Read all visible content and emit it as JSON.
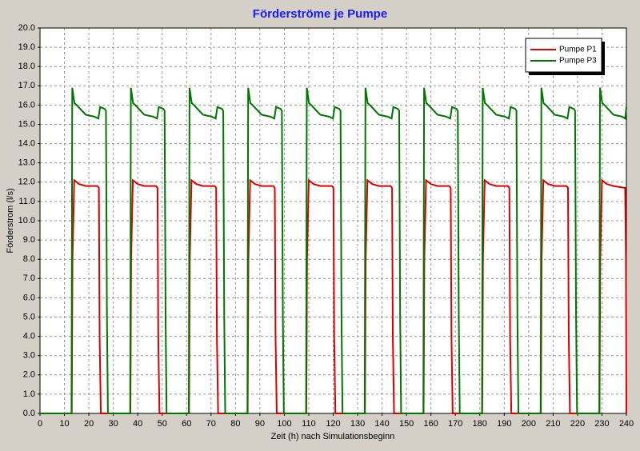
{
  "chart_data": {
    "type": "line",
    "title": "Förderströme je Pumpe",
    "xlabel": "Zeit (h) nach Simulationsbeginn",
    "ylabel": "Förderstrom (l/s)",
    "xlim": [
      0,
      240
    ],
    "ylim": [
      0,
      20
    ],
    "xticks": [
      0,
      10,
      20,
      30,
      40,
      50,
      60,
      70,
      80,
      90,
      100,
      110,
      120,
      130,
      140,
      150,
      160,
      170,
      180,
      190,
      200,
      210,
      220,
      230,
      240
    ],
    "yticks": [
      {
        "value": 0,
        "label": "0.0"
      },
      {
        "value": 1,
        "label": "1.0"
      },
      {
        "value": 2,
        "label": "2.0"
      },
      {
        "value": 3,
        "label": "3.0"
      },
      {
        "value": 4,
        "label": "4.0"
      },
      {
        "value": 5,
        "label": "5.0"
      },
      {
        "value": 6,
        "label": "6.0"
      },
      {
        "value": 7,
        "label": "7.0"
      },
      {
        "value": 8,
        "label": "8.0"
      },
      {
        "value": 9,
        "label": "9.0"
      },
      {
        "value": 10,
        "label": "10.0"
      },
      {
        "value": 11,
        "label": "11.0"
      },
      {
        "value": 12,
        "label": "12.0"
      },
      {
        "value": 13,
        "label": "13.0"
      },
      {
        "value": 14,
        "label": "14.0"
      },
      {
        "value": 15,
        "label": "15.0"
      },
      {
        "value": 16,
        "label": "16.0"
      },
      {
        "value": 17,
        "label": "17.0"
      },
      {
        "value": 18,
        "label": "18.0"
      },
      {
        "value": 19,
        "label": "19.0"
      },
      {
        "value": 20,
        "label": "20.0"
      }
    ],
    "grid": true,
    "legend": "upper right",
    "series": [
      {
        "name": "Pumpe P1",
        "color": "#dd0000",
        "x": [
          0,
          13.0,
          13.3,
          14.0,
          16,
          18.7,
          23.5,
          24.1,
          24.4,
          24.9,
          37.0,
          37.3,
          38.0,
          40,
          42.7,
          47.5,
          48.1,
          48.4,
          48.9,
          61.0,
          61.3,
          62.0,
          64,
          66.7,
          71.5,
          72.1,
          72.4,
          72.9,
          85.0,
          85.3,
          86.0,
          88,
          90.7,
          95.5,
          96.1,
          96.4,
          96.9,
          109.0,
          109.3,
          110.0,
          112,
          114.7,
          119.5,
          120.1,
          120.4,
          120.9,
          133.0,
          133.3,
          134.0,
          136,
          138.7,
          143.5,
          144.1,
          144.4,
          144.9,
          157.0,
          157.3,
          158.0,
          160,
          162.7,
          167.5,
          168.1,
          168.4,
          168.9,
          181.0,
          181.3,
          182.0,
          184,
          186.7,
          191.5,
          192.1,
          192.4,
          192.9,
          205.0,
          205.3,
          206.0,
          208,
          210.7,
          215.5,
          216.1,
          216.4,
          216.9,
          229,
          229.3,
          230,
          232,
          234.7,
          239.5,
          239.8,
          240
        ],
        "values": [
          0,
          0,
          8,
          12.1,
          11.9,
          11.8,
          11.8,
          11.7,
          4,
          0,
          0,
          8,
          12.1,
          11.9,
          11.8,
          11.8,
          11.7,
          4,
          0,
          0,
          8,
          12.1,
          11.9,
          11.8,
          11.8,
          11.7,
          4,
          0,
          0,
          8,
          12.1,
          11.9,
          11.8,
          11.8,
          11.7,
          4,
          0,
          0,
          8,
          12.1,
          11.9,
          11.8,
          11.8,
          11.7,
          4,
          0,
          0,
          8,
          12.1,
          11.9,
          11.8,
          11.8,
          11.7,
          4,
          0,
          0,
          8,
          12.1,
          11.9,
          11.8,
          11.8,
          11.7,
          4,
          0,
          0,
          8,
          12.1,
          11.9,
          11.8,
          11.8,
          11.7,
          4,
          0,
          0,
          8,
          12.1,
          11.9,
          11.8,
          11.8,
          11.7,
          4,
          0,
          0,
          8,
          12.1,
          11.9,
          11.8,
          11.7,
          8,
          0
        ]
      },
      {
        "name": "Pumpe P3",
        "color": "#007700",
        "x": [
          0,
          12.9,
          13.2,
          14.1,
          15,
          18.7,
          22.3,
          23.9,
          24.6,
          26.5,
          27.0,
          27.4,
          27.8,
          36.9,
          37.2,
          38.1,
          39,
          42.7,
          46.3,
          47.9,
          48.6,
          50.5,
          51.0,
          51.4,
          51.8,
          60.9,
          61.2,
          62.1,
          63,
          66.7,
          70.3,
          71.9,
          72.6,
          74.5,
          75.0,
          75.4,
          75.8,
          84.9,
          85.2,
          86.1,
          87,
          90.7,
          94.3,
          95.9,
          96.6,
          98.5,
          99.0,
          99.4,
          99.8,
          108.9,
          109.2,
          110.1,
          111,
          114.7,
          118.3,
          119.9,
          120.6,
          122.5,
          123.0,
          123.4,
          123.8,
          132.9,
          133.2,
          134.1,
          135,
          138.7,
          142.3,
          143.9,
          144.6,
          146.5,
          147.0,
          147.4,
          147.8,
          156.9,
          157.2,
          158.1,
          159,
          162.7,
          166.3,
          167.9,
          168.6,
          170.5,
          171.0,
          171.4,
          171.8,
          180.9,
          181.2,
          182.1,
          183,
          186.7,
          190.3,
          191.9,
          192.6,
          194.5,
          195.0,
          195.4,
          195.8,
          204.9,
          205.2,
          206.1,
          207,
          210.7,
          214.3,
          215.9,
          216.6,
          218.5,
          219.0,
          219.4,
          219.8,
          228.9,
          229.2,
          230.1,
          231,
          234.7,
          238.3,
          239.5,
          240
        ],
        "values": [
          0,
          0,
          16.9,
          16.1,
          16.0,
          15.5,
          15.4,
          15.3,
          15.9,
          15.8,
          15.7,
          5,
          0,
          0,
          16.9,
          16.1,
          16.0,
          15.5,
          15.4,
          15.3,
          15.9,
          15.8,
          15.7,
          5,
          0,
          0,
          16.9,
          16.1,
          16.0,
          15.5,
          15.4,
          15.3,
          15.9,
          15.8,
          15.7,
          5,
          0,
          0,
          16.9,
          16.1,
          16.0,
          15.5,
          15.4,
          15.3,
          15.9,
          15.8,
          15.7,
          5,
          0,
          0,
          16.9,
          16.1,
          16.0,
          15.5,
          15.4,
          15.3,
          15.9,
          15.8,
          15.7,
          5,
          0,
          0,
          16.9,
          16.1,
          16.0,
          15.5,
          15.4,
          15.3,
          15.9,
          15.8,
          15.7,
          5,
          0,
          0,
          16.9,
          16.1,
          16.0,
          15.5,
          15.4,
          15.3,
          15.9,
          15.8,
          15.7,
          5,
          0,
          0,
          16.9,
          16.1,
          16.0,
          15.5,
          15.4,
          15.3,
          15.9,
          15.8,
          15.7,
          5,
          0,
          0,
          16.9,
          16.1,
          16.0,
          15.5,
          15.4,
          15.3,
          15.9,
          15.8,
          15.7,
          5,
          0,
          0,
          16.9,
          16.1,
          16.0,
          15.5,
          15.4,
          15.3,
          15.9
        ]
      }
    ]
  }
}
